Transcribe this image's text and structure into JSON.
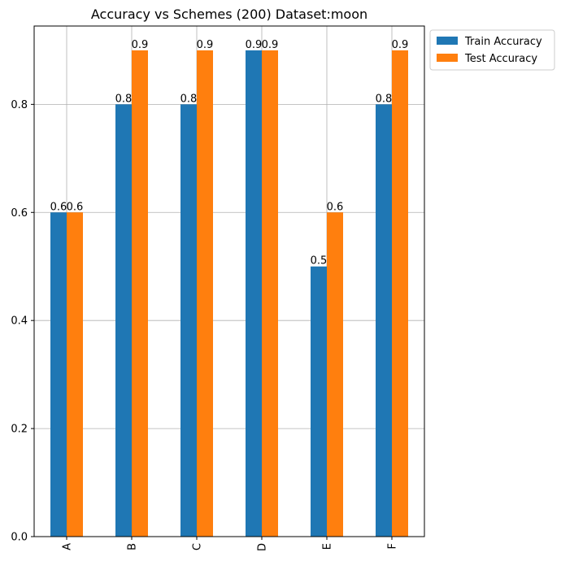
{
  "chart_data": {
    "type": "bar",
    "title": "Accuracy vs Schemes (200) Dataset:moon",
    "xlabel": "",
    "ylabel": "",
    "categories": [
      "A",
      "B",
      "C",
      "D",
      "E",
      "F"
    ],
    "series": [
      {
        "name": "Train Accuracy",
        "color": "#1f77b4",
        "values": [
          0.6,
          0.8,
          0.8,
          0.9,
          0.5,
          0.8
        ],
        "labels": [
          "0.6",
          "0.8",
          "0.8",
          "0.9",
          "0.5",
          "0.8"
        ]
      },
      {
        "name": "Test Accuracy",
        "color": "#ff7f0e",
        "values": [
          0.6,
          0.9,
          0.9,
          0.9,
          0.6,
          0.9
        ],
        "labels": [
          "0.6",
          "0.9",
          "0.9",
          "0.9",
          "0.6",
          "0.9"
        ]
      }
    ],
    "ylim": [
      0,
      0.945
    ],
    "yticks": [
      0.0,
      0.2,
      0.4,
      0.6,
      0.8
    ],
    "ytick_labels": [
      "0.0",
      "0.2",
      "0.4",
      "0.6",
      "0.8"
    ],
    "grid": true,
    "legend": "outside-top-right",
    "xtick_rotation": "vertical"
  }
}
